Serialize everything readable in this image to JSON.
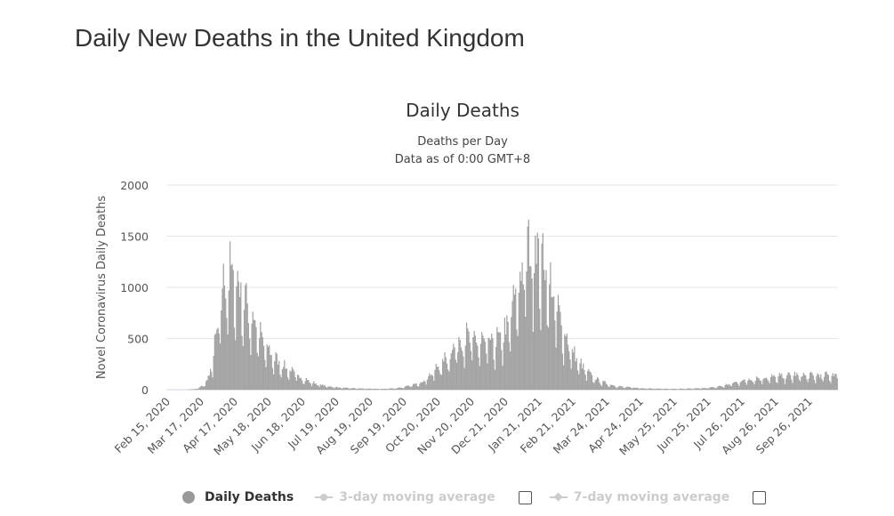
{
  "page": {
    "title": "Daily New Deaths in the United Kingdom"
  },
  "legend": {
    "items": [
      {
        "label": "Daily Deaths",
        "active": true
      },
      {
        "label": "3-day moving average",
        "active": false
      },
      {
        "label": "7-day moving average",
        "active": false
      }
    ]
  },
  "colors": {
    "bar": "#a3a3a3",
    "bar_stroke": "#8f8f8f",
    "grid": "#e6e6e6",
    "baseline": "#ccd6eb"
  },
  "chart_data": {
    "type": "bar",
    "title": "Daily Deaths",
    "subtitle_lines": [
      "Deaths per Day",
      "Data as of 0:00 GMT+8"
    ],
    "xlabel": "",
    "ylabel": "Novel Coronavirus Daily Deaths",
    "ylim": [
      0,
      2000
    ],
    "yticks": [
      0,
      500,
      1000,
      1500,
      2000
    ],
    "grid": true,
    "legend_position": "bottom-center",
    "x_start_date": "2020-02-15",
    "x_end_date": "2021-10-22",
    "x_tick_labels": [
      {
        "date": "2020-02-15",
        "label": "Feb 15, 2020"
      },
      {
        "date": "2020-03-17",
        "label": "Mar 17, 2020"
      },
      {
        "date": "2020-04-17",
        "label": "Apr 17, 2020"
      },
      {
        "date": "2020-05-18",
        "label": "May 18, 2020"
      },
      {
        "date": "2020-06-18",
        "label": "Jun 18, 2020"
      },
      {
        "date": "2020-07-19",
        "label": "Jul 19, 2020"
      },
      {
        "date": "2020-08-19",
        "label": "Aug 19, 2020"
      },
      {
        "date": "2020-09-19",
        "label": "Sep 19, 2020"
      },
      {
        "date": "2020-10-20",
        "label": "Oct 20, 2020"
      },
      {
        "date": "2020-11-20",
        "label": "Nov 20, 2020"
      },
      {
        "date": "2020-12-21",
        "label": "Dec 21, 2020"
      },
      {
        "date": "2021-01-21",
        "label": "Jan 21, 2021"
      },
      {
        "date": "2021-02-21",
        "label": "Feb 21, 2021"
      },
      {
        "date": "2021-03-24",
        "label": "Mar 24, 2021"
      },
      {
        "date": "2021-04-24",
        "label": "Apr 24, 2021"
      },
      {
        "date": "2021-05-25",
        "label": "May 25, 2021"
      },
      {
        "date": "2021-06-25",
        "label": "Jun 25, 2021"
      },
      {
        "date": "2021-07-26",
        "label": "Jul 26, 2021"
      },
      {
        "date": "2021-08-26",
        "label": "Aug 26, 2021"
      },
      {
        "date": "2021-09-26",
        "label": "Sep 26, 2021"
      }
    ],
    "series": [
      {
        "name": "Daily Deaths",
        "approx_points": [
          [
            "2020-02-15",
            0
          ],
          [
            "2020-03-05",
            0
          ],
          [
            "2020-03-10",
            2
          ],
          [
            "2020-03-15",
            10
          ],
          [
            "2020-03-20",
            40
          ],
          [
            "2020-03-25",
            120
          ],
          [
            "2020-03-28",
            250
          ],
          [
            "2020-04-01",
            480
          ],
          [
            "2020-04-04",
            700
          ],
          [
            "2020-04-07",
            900
          ],
          [
            "2020-04-10",
            1000
          ],
          [
            "2020-04-14",
            980
          ],
          [
            "2020-04-18",
            950
          ],
          [
            "2020-04-22",
            880
          ],
          [
            "2020-04-26",
            780
          ],
          [
            "2020-04-30",
            700
          ],
          [
            "2020-05-05",
            600
          ],
          [
            "2020-05-10",
            480
          ],
          [
            "2020-05-15",
            380
          ],
          [
            "2020-05-20",
            320
          ],
          [
            "2020-05-25",
            260
          ],
          [
            "2020-05-30",
            220
          ],
          [
            "2020-06-05",
            180
          ],
          [
            "2020-06-10",
            150
          ],
          [
            "2020-06-15",
            120
          ],
          [
            "2020-06-20",
            90
          ],
          [
            "2020-06-25",
            70
          ],
          [
            "2020-07-01",
            50
          ],
          [
            "2020-07-08",
            35
          ],
          [
            "2020-07-15",
            25
          ],
          [
            "2020-07-22",
            18
          ],
          [
            "2020-08-01",
            12
          ],
          [
            "2020-08-15",
            8
          ],
          [
            "2020-08-30",
            6
          ],
          [
            "2020-09-10",
            10
          ],
          [
            "2020-09-20",
            22
          ],
          [
            "2020-09-30",
            45
          ],
          [
            "2020-10-08",
            80
          ],
          [
            "2020-10-15",
            140
          ],
          [
            "2020-10-22",
            210
          ],
          [
            "2020-10-30",
            290
          ],
          [
            "2020-11-05",
            380
          ],
          [
            "2020-11-10",
            430
          ],
          [
            "2020-11-15",
            450
          ],
          [
            "2020-11-20",
            440
          ],
          [
            "2020-11-25",
            420
          ],
          [
            "2020-11-30",
            410
          ],
          [
            "2020-12-05",
            405
          ],
          [
            "2020-12-10",
            400
          ],
          [
            "2020-12-15",
            430
          ],
          [
            "2020-12-20",
            480
          ],
          [
            "2020-12-25",
            580
          ],
          [
            "2020-12-30",
            780
          ],
          [
            "2021-01-04",
            950
          ],
          [
            "2021-01-08",
            1120
          ],
          [
            "2021-01-12",
            1200
          ],
          [
            "2021-01-16",
            1250
          ],
          [
            "2021-01-20",
            1230
          ],
          [
            "2021-01-24",
            1150
          ],
          [
            "2021-01-28",
            1050
          ],
          [
            "2021-02-01",
            900
          ],
          [
            "2021-02-05",
            760
          ],
          [
            "2021-02-10",
            600
          ],
          [
            "2021-02-15",
            460
          ],
          [
            "2021-02-20",
            350
          ],
          [
            "2021-02-25",
            270
          ],
          [
            "2021-03-02",
            200
          ],
          [
            "2021-03-07",
            150
          ],
          [
            "2021-03-12",
            110
          ],
          [
            "2021-03-17",
            80
          ],
          [
            "2021-03-22",
            60
          ],
          [
            "2021-03-27",
            45
          ],
          [
            "2021-04-03",
            30
          ],
          [
            "2021-04-12",
            20
          ],
          [
            "2021-04-25",
            12
          ],
          [
            "2021-05-10",
            8
          ],
          [
            "2021-05-25",
            6
          ],
          [
            "2021-06-05",
            7
          ],
          [
            "2021-06-15",
            10
          ],
          [
            "2021-06-25",
            15
          ],
          [
            "2021-07-02",
            20
          ],
          [
            "2021-07-10",
            35
          ],
          [
            "2021-07-18",
            55
          ],
          [
            "2021-07-26",
            75
          ],
          [
            "2021-08-03",
            90
          ],
          [
            "2021-08-12",
            100
          ],
          [
            "2021-08-22",
            105
          ],
          [
            "2021-09-01",
            115
          ],
          [
            "2021-09-10",
            125
          ],
          [
            "2021-09-20",
            125
          ],
          [
            "2021-10-01",
            120
          ],
          [
            "2021-10-10",
            125
          ],
          [
            "2021-10-22",
            130
          ]
        ]
      }
    ]
  }
}
